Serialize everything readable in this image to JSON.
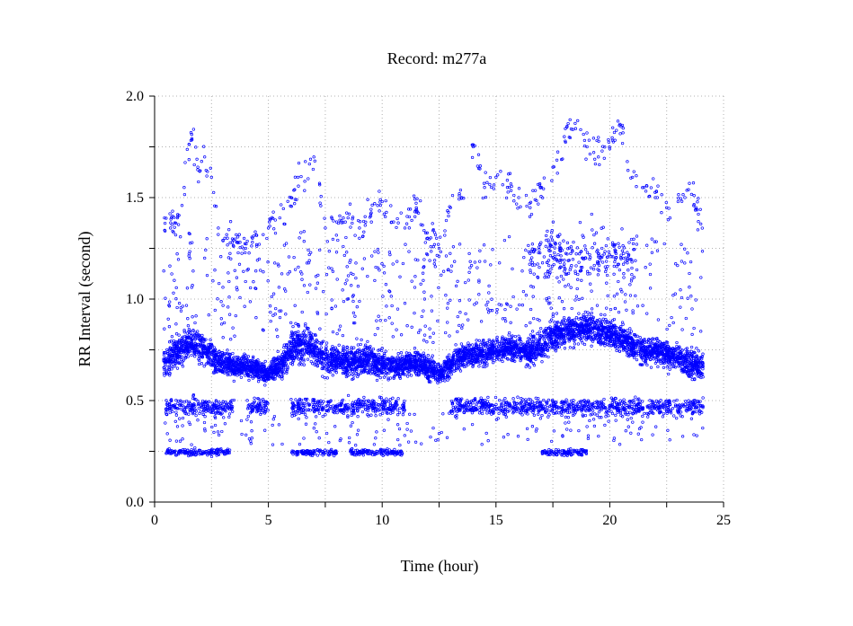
{
  "chart_data": {
    "type": "scatter",
    "title": "Record:  m277a",
    "xlabel": "Time (hour)",
    "ylabel": "RR Interval (second)",
    "xlim": [
      0,
      25
    ],
    "ylim": [
      0.0,
      2.0
    ],
    "xticks": [
      "0",
      "5",
      "10",
      "15",
      "20",
      "25"
    ],
    "yticks": [
      "0.0",
      "0.5",
      "1.0",
      "1.5",
      "2.0"
    ],
    "grid": true,
    "marker": "small hollow circle",
    "color": "#0000ff",
    "data_span_hours": [
      0.4,
      24.1
    ],
    "series": [
      {
        "kind": "main band (sampled)",
        "x": [
          0.5,
          1.0,
          1.5,
          2.0,
          2.5,
          3.0,
          3.5,
          4.0,
          4.5,
          5.0,
          5.5,
          6.0,
          6.5,
          7.0,
          7.5,
          8.0,
          8.5,
          9.0,
          9.5,
          10.0,
          10.5,
          11.0,
          11.5,
          12.0,
          12.5,
          13.0,
          13.5,
          14.0,
          14.5,
          15.0,
          15.5,
          16.0,
          16.5,
          17.0,
          17.5,
          18.0,
          18.5,
          19.0,
          19.5,
          20.0,
          20.5,
          21.0,
          21.5,
          22.0,
          22.5,
          23.0,
          23.5,
          24.0
        ],
        "y": [
          0.7,
          0.74,
          0.78,
          0.77,
          0.72,
          0.68,
          0.67,
          0.67,
          0.65,
          0.63,
          0.67,
          0.76,
          0.78,
          0.76,
          0.7,
          0.7,
          0.69,
          0.7,
          0.7,
          0.68,
          0.67,
          0.68,
          0.69,
          0.66,
          0.63,
          0.68,
          0.72,
          0.73,
          0.74,
          0.75,
          0.76,
          0.75,
          0.74,
          0.77,
          0.82,
          0.84,
          0.85,
          0.86,
          0.84,
          0.83,
          0.81,
          0.77,
          0.75,
          0.74,
          0.73,
          0.72,
          0.68,
          0.67
        ],
        "spread": [
          0.08,
          0.08,
          0.08,
          0.08,
          0.07,
          0.06,
          0.06,
          0.05,
          0.05,
          0.05,
          0.07,
          0.09,
          0.09,
          0.09,
          0.08,
          0.07,
          0.07,
          0.08,
          0.08,
          0.07,
          0.06,
          0.06,
          0.06,
          0.06,
          0.05,
          0.06,
          0.06,
          0.06,
          0.06,
          0.06,
          0.06,
          0.06,
          0.07,
          0.08,
          0.08,
          0.08,
          0.08,
          0.08,
          0.07,
          0.07,
          0.07,
          0.07,
          0.07,
          0.07,
          0.07,
          0.07,
          0.08,
          0.08
        ]
      },
      {
        "kind": "secondary band near 0.5 s",
        "x_ranges": [
          [
            0.5,
            3.5
          ],
          [
            4.0,
            5.0
          ],
          [
            6.0,
            11.0
          ],
          [
            13.0,
            24.1
          ]
        ],
        "y_center": 0.47,
        "spread": 0.05
      },
      {
        "kind": "short-interval band near 0.25 s",
        "x_ranges": [
          [
            0.5,
            3.3
          ],
          [
            6.0,
            8.0
          ],
          [
            8.6,
            10.9
          ],
          [
            17.0,
            19.0
          ]
        ],
        "y_center": 0.245,
        "spread": 0.02
      },
      {
        "kind": "long-interval outliers (sampled)",
        "x": [
          0.7,
          1.0,
          1.3,
          1.6,
          1.9,
          2.2,
          2.5,
          2.8,
          3.2,
          3.6,
          4.0,
          4.3,
          4.6,
          5.0,
          5.5,
          6.0,
          6.3,
          6.6,
          7.0,
          7.5,
          8.0,
          8.5,
          9.0,
          9.5,
          10.0,
          10.5,
          11.0,
          11.5,
          12.0,
          12.5,
          13.0,
          13.5,
          14.0,
          14.5,
          15.0,
          15.5,
          16.0,
          16.5,
          17.0,
          17.5,
          18.0,
          18.5,
          19.0,
          19.5,
          20.0,
          20.5,
          21.0,
          21.5,
          22.0,
          22.5,
          23.0,
          23.5,
          24.0
        ],
        "y": [
          1.35,
          1.4,
          1.55,
          1.82,
          1.65,
          1.7,
          1.6,
          1.35,
          1.3,
          1.28,
          1.25,
          1.3,
          1.27,
          1.35,
          1.4,
          1.5,
          1.6,
          1.58,
          1.7,
          1.35,
          1.38,
          1.4,
          1.35,
          1.42,
          1.48,
          1.38,
          1.35,
          1.45,
          1.3,
          1.25,
          1.45,
          1.5,
          1.75,
          1.55,
          1.6,
          1.55,
          1.5,
          1.45,
          1.55,
          1.65,
          1.8,
          1.84,
          1.75,
          1.7,
          1.74,
          1.85,
          1.6,
          1.55,
          1.5,
          1.45,
          1.48,
          1.57,
          1.37
        ]
      },
      {
        "kind": "upper cluster near 1.2 s",
        "x_ranges": [
          [
            16.5,
            21.0
          ]
        ],
        "y_center": 1.2,
        "spread": 0.12
      }
    ]
  }
}
